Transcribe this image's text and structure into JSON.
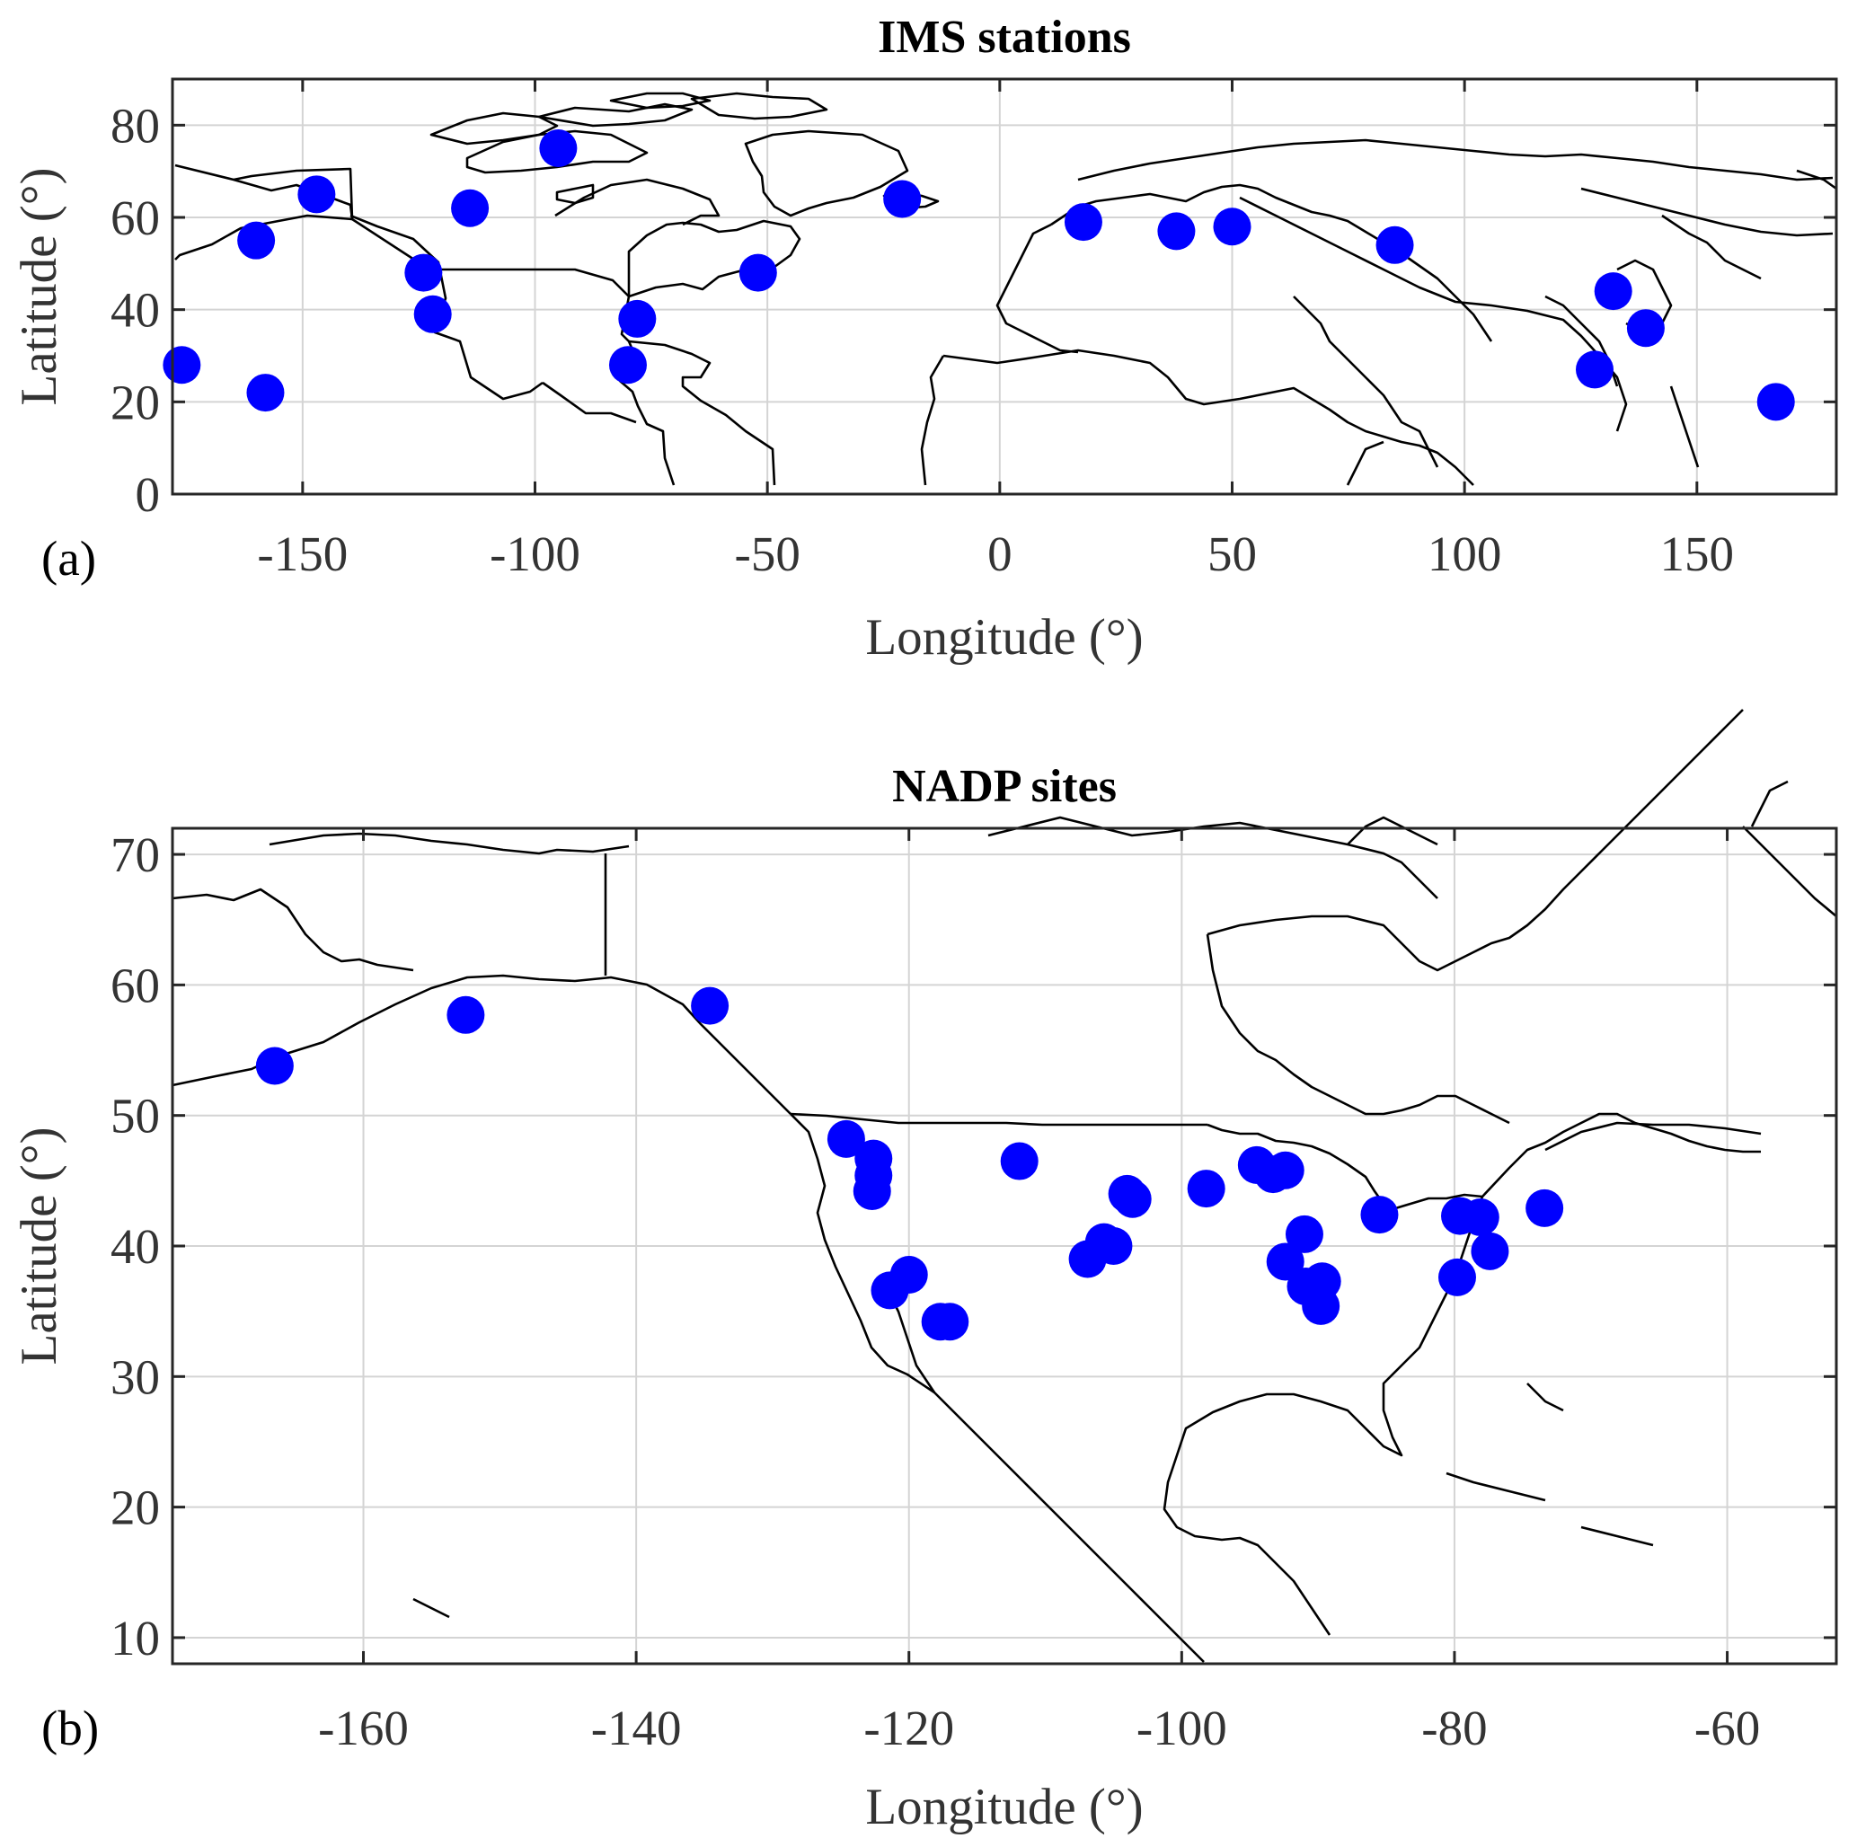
{
  "colors": {
    "marker": "#0000ff",
    "coast": "#000000",
    "grid": "#d4d4d4"
  },
  "chart_data": [
    {
      "type": "scatter",
      "panel_label": "(a)",
      "title": "IMS stations",
      "xlabel": "Longitude (°)",
      "ylabel": "Latitude (°)",
      "xlim": [
        -178,
        180
      ],
      "ylim": [
        0,
        90
      ],
      "xticks": [
        -150,
        -100,
        -50,
        0,
        50,
        100,
        150
      ],
      "yticks": [
        0,
        20,
        40,
        60,
        80
      ],
      "xtick_labels": [
        "-150",
        "-100",
        "-50",
        "0",
        "50",
        "100",
        "150"
      ],
      "ytick_labels": [
        "0",
        "20",
        "40",
        "60",
        "80"
      ],
      "grid": true,
      "basemap": "world coastlines and country borders",
      "x": [
        -176,
        -160,
        -158,
        -147,
        -114,
        -122,
        -124,
        -95,
        -80,
        -78,
        -52,
        -21,
        18,
        38,
        50,
        85,
        132,
        139,
        128,
        167
      ],
      "y": [
        28,
        55,
        22,
        65,
        62,
        39,
        48,
        75,
        28,
        38,
        48,
        64,
        59,
        57,
        58,
        54,
        44,
        36,
        27,
        20
      ]
    },
    {
      "type": "scatter",
      "panel_label": "(b)",
      "title": "NADP sites",
      "xlabel": "Longitude (°)",
      "ylabel": "Latitude (°)",
      "xlim": [
        -174,
        -52
      ],
      "ylim": [
        8,
        72
      ],
      "xticks": [
        -160,
        -140,
        -120,
        -100,
        -80,
        -60
      ],
      "yticks": [
        10,
        20,
        30,
        40,
        50,
        60,
        70
      ],
      "xtick_labels": [
        "-160",
        "-140",
        "-120",
        "-100",
        "-80",
        "-60"
      ],
      "ytick_labels": [
        "10",
        "20",
        "30",
        "40",
        "50",
        "60",
        "70"
      ],
      "grid": true,
      "basemap": "North America coastlines and borders",
      "x": [
        -166.5,
        -152.5,
        -134.6,
        -124.6,
        -122.6,
        -122.6,
        -122.7,
        -120.0,
        -121.4,
        -117.7,
        -117.0,
        -111.9,
        -106.9,
        -105.7,
        -105.0,
        -104.0,
        -103.6,
        -98.2,
        -94.5,
        -93.3,
        -92.4,
        -91.0,
        -92.4,
        -90.9,
        -89.7,
        -89.8,
        -85.5,
        -79.6,
        -78.1,
        -77.4,
        -79.8,
        -73.4
      ],
      "y": [
        53.8,
        57.7,
        58.4,
        48.2,
        46.7,
        45.4,
        44.2,
        37.8,
        36.6,
        34.2,
        34.2,
        46.5,
        39.0,
        40.3,
        40.0,
        44.0,
        43.6,
        44.4,
        46.2,
        45.5,
        45.8,
        40.9,
        38.8,
        36.9,
        37.3,
        35.4,
        42.4,
        42.3,
        42.2,
        39.6,
        37.6,
        42.9
      ]
    }
  ]
}
